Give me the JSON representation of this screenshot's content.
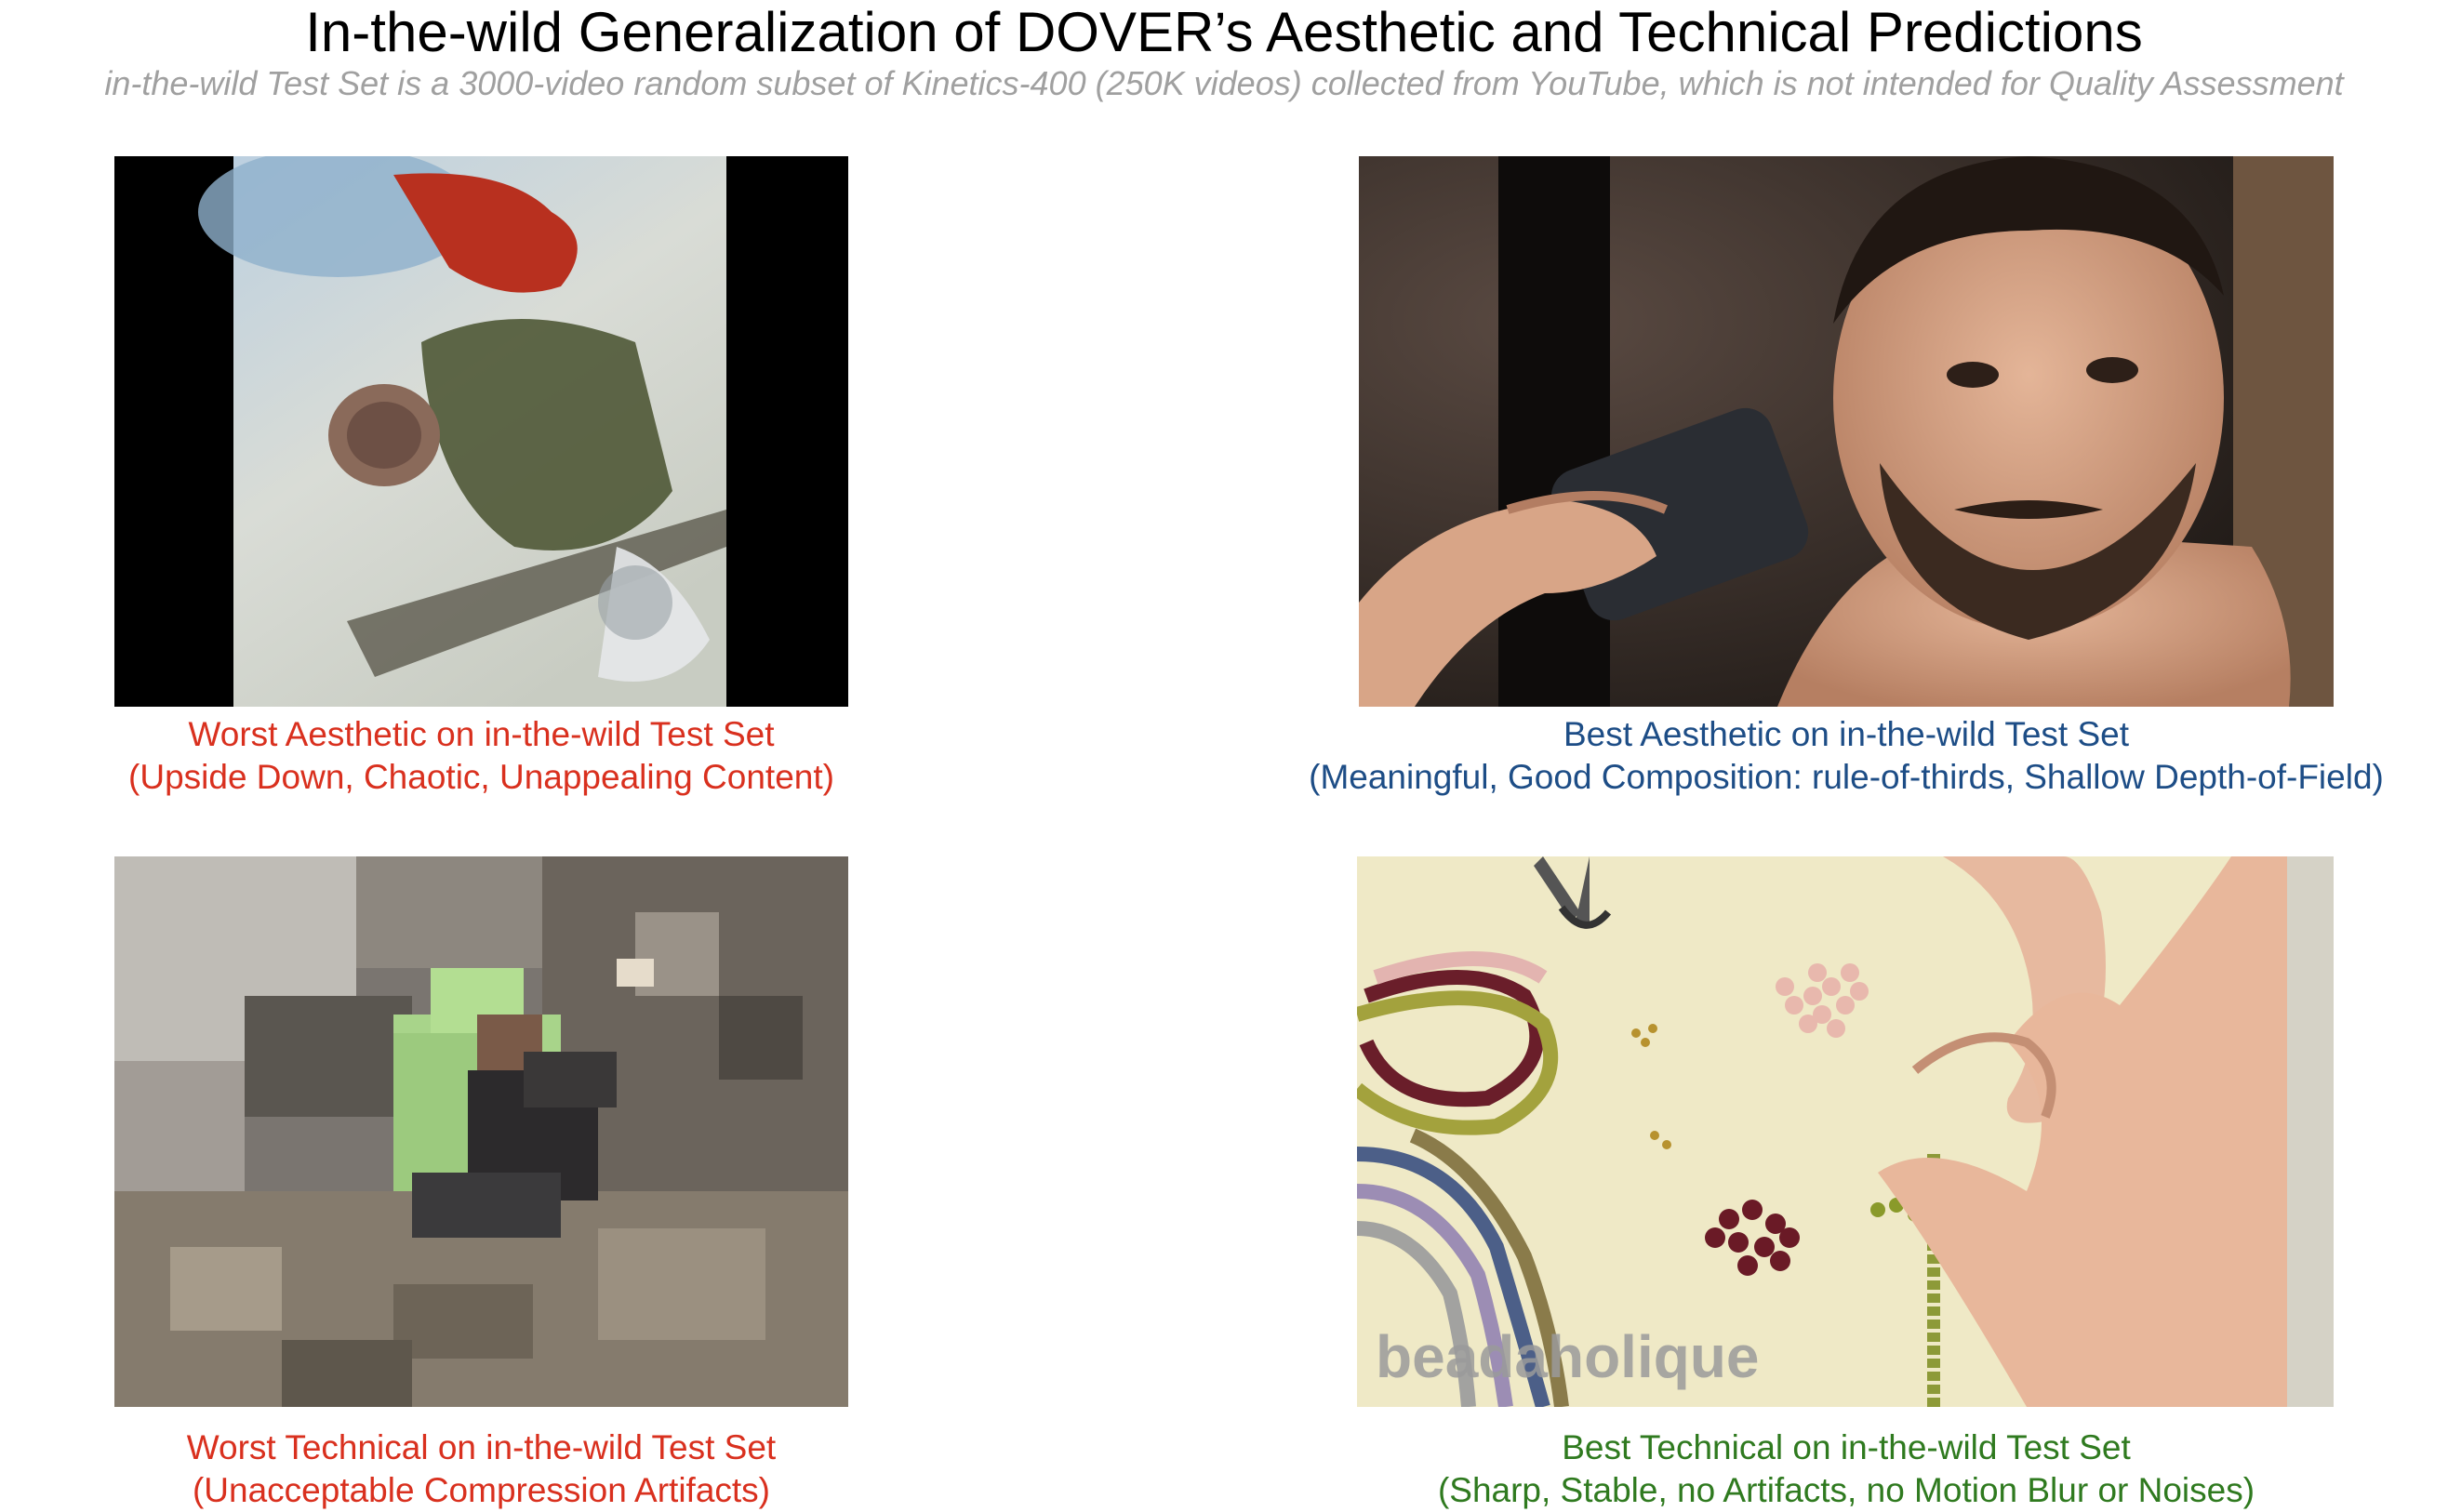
{
  "header": {
    "title": "In-the-wild Generalization of DOVER’s Aesthetic and Technical Predictions",
    "subtitle": "in-the-wild Test Set is a 3000-video random subset of Kinetics-400 (250K videos) collected from YouTube, which is not intended for Quality Assessment"
  },
  "panels": {
    "worst_aesthetic": {
      "caption_line1": "Worst Aesthetic on in-the-wild Test Set",
      "caption_line2": "(Upside Down, Chaotic, Unappealing Content)",
      "color": "#d9301e"
    },
    "best_aesthetic": {
      "caption_line1": "Best Aesthetic on in-the-wild Test Set",
      "caption_line2": "(Meaningful, Good Composition: rule-of-thirds, Shallow Depth-of-Field)",
      "color": "#1d4d86"
    },
    "worst_technical": {
      "caption_line1": "Worst Technical on in-the-wild Test Set",
      "caption_line2": "(Unacceptable Compression Artifacts)",
      "color": "#d9301e"
    },
    "best_technical": {
      "caption_line1": "Best Technical on in-the-wild Test Set",
      "caption_line2": "(Sharp, Stable, no Artifacts, no Motion Blur or Noises)",
      "color": "#2f7a1f",
      "watermark": "beadaholique"
    }
  }
}
